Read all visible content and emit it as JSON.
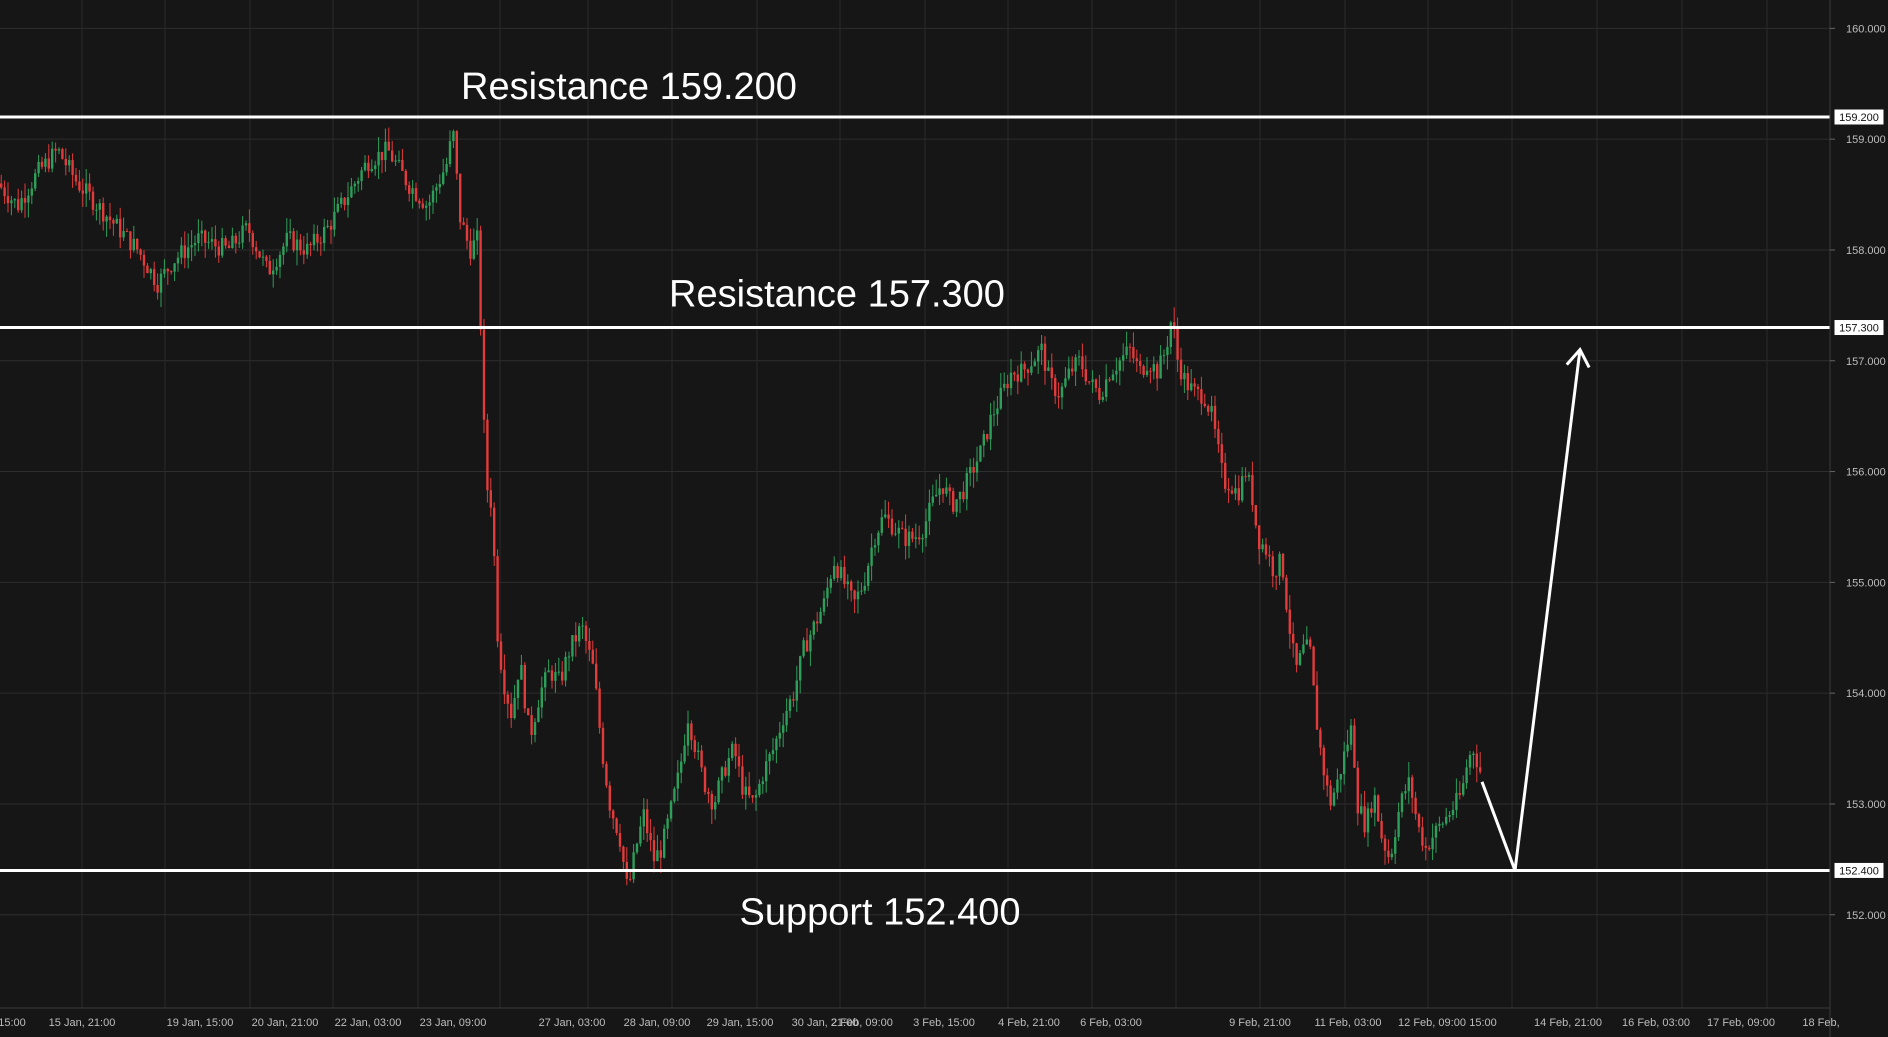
{
  "chart_data": {
    "type": "candlestick",
    "y_axis": {
      "range": [
        151.2,
        160.2
      ],
      "ticks": [
        "152.000",
        "153.000",
        "154.000",
        "155.000",
        "156.000",
        "157.000",
        "158.000",
        "159.000",
        "160.000"
      ],
      "position": "right"
    },
    "x_axis": {
      "ticks": [
        "15:00",
        "15 Jan, 21:00",
        "19 Jan, 15:00",
        "20 Jan, 21:00",
        "22 Jan, 03:00",
        "23 Jan, 09:00",
        "27 Jan, 03:00",
        "28 Jan, 09:00",
        "29 Jan, 15:00",
        "30 Jan, 21:00",
        "2 Feb, 09:00",
        "3 Feb, 15:00",
        "4 Feb, 21:00",
        "6 Feb, 03:00",
        "9 Feb, 21:00",
        "11 Feb, 03:00",
        "12 Feb, 09:00",
        "15:00",
        "14 Feb, 21:00",
        "16 Feb, 03:00",
        "17 Feb, 09:00",
        "18 Feb,"
      ]
    },
    "grid": true,
    "levels": [
      {
        "label": "Resistance 159.200",
        "value": 159.2,
        "price_tag": "159.200"
      },
      {
        "label": "Resistance 157.300",
        "value": 157.3,
        "price_tag": "157.300"
      },
      {
        "label": "Support 152.400",
        "value": 152.4,
        "price_tag": "152.400"
      }
    ],
    "price_path": [
      [
        0,
        158.6
      ],
      [
        20,
        158.4
      ],
      [
        40,
        158.7
      ],
      [
        60,
        158.9
      ],
      [
        80,
        158.6
      ],
      [
        100,
        158.4
      ],
      [
        120,
        158.2
      ],
      [
        140,
        158.0
      ],
      [
        160,
        157.7
      ],
      [
        175,
        157.9
      ],
      [
        200,
        158.1
      ],
      [
        230,
        158.0
      ],
      [
        250,
        158.2
      ],
      [
        270,
        157.8
      ],
      [
        290,
        158.1
      ],
      [
        310,
        158.0
      ],
      [
        330,
        158.2
      ],
      [
        350,
        158.5
      ],
      [
        370,
        158.8
      ],
      [
        390,
        158.9
      ],
      [
        410,
        158.6
      ],
      [
        430,
        158.4
      ],
      [
        450,
        158.8
      ],
      [
        455,
        159.1
      ],
      [
        462,
        158.3
      ],
      [
        472,
        158.0
      ],
      [
        480,
        158.1
      ],
      [
        484,
        157.0
      ],
      [
        488,
        155.9
      ],
      [
        494,
        155.7
      ],
      [
        500,
        154.5
      ],
      [
        506,
        154.1
      ],
      [
        514,
        153.8
      ],
      [
        522,
        154.3
      ],
      [
        532,
        153.6
      ],
      [
        542,
        154.0
      ],
      [
        552,
        154.2
      ],
      [
        562,
        154.1
      ],
      [
        572,
        154.4
      ],
      [
        584,
        154.6
      ],
      [
        596,
        154.2
      ],
      [
        604,
        153.5
      ],
      [
        612,
        153.0
      ],
      [
        622,
        152.7
      ],
      [
        630,
        152.2
      ],
      [
        638,
        152.6
      ],
      [
        646,
        152.9
      ],
      [
        656,
        152.5
      ],
      [
        664,
        152.6
      ],
      [
        672,
        152.9
      ],
      [
        682,
        153.3
      ],
      [
        690,
        153.8
      ],
      [
        698,
        153.5
      ],
      [
        706,
        153.2
      ],
      [
        716,
        153.0
      ],
      [
        726,
        153.3
      ],
      [
        736,
        153.5
      ],
      [
        746,
        153.1
      ],
      [
        756,
        153.0
      ],
      [
        766,
        153.3
      ],
      [
        776,
        153.5
      ],
      [
        786,
        153.8
      ],
      [
        796,
        154.0
      ],
      [
        806,
        154.4
      ],
      [
        816,
        154.6
      ],
      [
        826,
        154.8
      ],
      [
        836,
        155.2
      ],
      [
        846,
        155.0
      ],
      [
        856,
        154.8
      ],
      [
        866,
        155.0
      ],
      [
        876,
        155.4
      ],
      [
        886,
        155.6
      ],
      [
        896,
        155.5
      ],
      [
        906,
        155.4
      ],
      [
        916,
        155.4
      ],
      [
        926,
        155.5
      ],
      [
        934,
        155.7
      ],
      [
        944,
        155.9
      ],
      [
        954,
        155.7
      ],
      [
        964,
        155.8
      ],
      [
        974,
        156.0
      ],
      [
        984,
        156.2
      ],
      [
        994,
        156.5
      ],
      [
        1004,
        156.7
      ],
      [
        1014,
        156.9
      ],
      [
        1024,
        156.9
      ],
      [
        1034,
        157.0
      ],
      [
        1044,
        157.1
      ],
      [
        1052,
        156.8
      ],
      [
        1062,
        156.7
      ],
      [
        1072,
        156.9
      ],
      [
        1082,
        157.0
      ],
      [
        1092,
        156.8
      ],
      [
        1102,
        156.7
      ],
      [
        1112,
        156.9
      ],
      [
        1122,
        157.0
      ],
      [
        1132,
        157.1
      ],
      [
        1142,
        156.9
      ],
      [
        1150,
        157.0
      ],
      [
        1160,
        156.9
      ],
      [
        1168,
        157.1
      ],
      [
        1174,
        157.4
      ],
      [
        1180,
        157.0
      ],
      [
        1188,
        156.8
      ],
      [
        1198,
        156.7
      ],
      [
        1206,
        156.7
      ],
      [
        1214,
        156.5
      ],
      [
        1220,
        156.2
      ],
      [
        1226,
        155.9
      ],
      [
        1232,
        155.9
      ],
      [
        1240,
        155.8
      ],
      [
        1248,
        156.0
      ],
      [
        1254,
        155.8
      ],
      [
        1260,
        155.4
      ],
      [
        1268,
        155.3
      ],
      [
        1276,
        155.1
      ],
      [
        1284,
        155.2
      ],
      [
        1290,
        154.7
      ],
      [
        1298,
        154.2
      ],
      [
        1306,
        154.4
      ],
      [
        1312,
        154.4
      ],
      [
        1318,
        153.8
      ],
      [
        1324,
        153.4
      ],
      [
        1332,
        153.0
      ],
      [
        1340,
        153.2
      ],
      [
        1348,
        153.5
      ],
      [
        1354,
        153.7
      ],
      [
        1360,
        153.0
      ],
      [
        1368,
        152.8
      ],
      [
        1376,
        153.1
      ],
      [
        1384,
        152.7
      ],
      [
        1392,
        152.5
      ],
      [
        1400,
        152.9
      ],
      [
        1406,
        153.1
      ],
      [
        1412,
        153.2
      ],
      [
        1420,
        152.8
      ],
      [
        1428,
        152.6
      ],
      [
        1434,
        152.7
      ],
      [
        1442,
        152.8
      ],
      [
        1450,
        152.9
      ],
      [
        1458,
        153.0
      ],
      [
        1464,
        153.1
      ],
      [
        1470,
        153.4
      ],
      [
        1476,
        153.5
      ],
      [
        1482,
        153.3
      ]
    ],
    "projection_path": [
      [
        1482,
        153.2
      ],
      [
        1515,
        152.4
      ],
      [
        1580,
        157.1
      ]
    ]
  }
}
